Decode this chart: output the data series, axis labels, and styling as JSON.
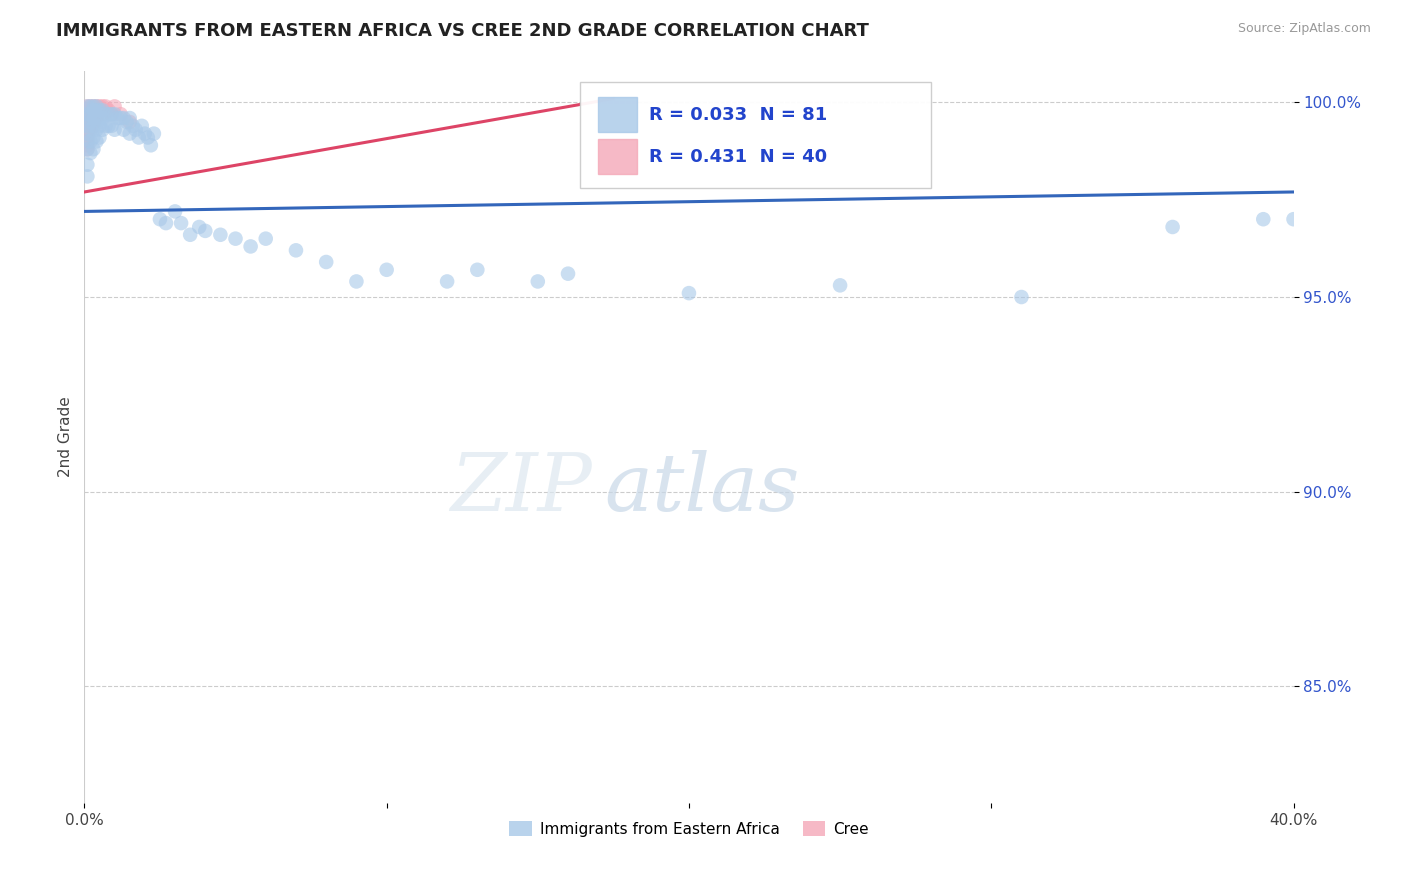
{
  "title": "IMMIGRANTS FROM EASTERN AFRICA VS CREE 2ND GRADE CORRELATION CHART",
  "source": "Source: ZipAtlas.com",
  "ylabel": "2nd Grade",
  "xlim": [
    0.0,
    0.4
  ],
  "ylim": [
    0.82,
    1.008
  ],
  "ytick_pos": [
    0.85,
    0.9,
    0.95,
    1.0
  ],
  "ytick_labels": [
    "85.0%",
    "90.0%",
    "95.0%",
    "100.0%"
  ],
  "xtick_pos": [
    0.0,
    0.1,
    0.2,
    0.3,
    0.4
  ],
  "xtick_labels": [
    "0.0%",
    "",
    "",
    "",
    "40.0%"
  ],
  "blue_R": 0.033,
  "blue_N": 81,
  "pink_R": 0.431,
  "pink_N": 40,
  "blue_color": "#a8c8e8",
  "pink_color": "#f4a8b8",
  "blue_line_color": "#3366bb",
  "pink_line_color": "#dd4466",
  "legend_label_blue": "Immigrants from Eastern Africa",
  "legend_label_pink": "Cree",
  "blue_line_x": [
    0.0,
    0.4
  ],
  "blue_line_y": [
    0.972,
    0.977
  ],
  "pink_line_x": [
    0.0,
    0.175
  ],
  "pink_line_y": [
    0.977,
    1.001
  ],
  "blue_x": [
    0.001,
    0.001,
    0.001,
    0.001,
    0.001,
    0.001,
    0.001,
    0.001,
    0.001,
    0.002,
    0.002,
    0.002,
    0.002,
    0.002,
    0.002,
    0.003,
    0.003,
    0.003,
    0.003,
    0.003,
    0.003,
    0.004,
    0.004,
    0.004,
    0.004,
    0.004,
    0.005,
    0.005,
    0.005,
    0.005,
    0.006,
    0.006,
    0.006,
    0.007,
    0.007,
    0.008,
    0.008,
    0.009,
    0.009,
    0.01,
    0.01,
    0.011,
    0.012,
    0.013,
    0.013,
    0.014,
    0.015,
    0.015,
    0.016,
    0.017,
    0.018,
    0.019,
    0.02,
    0.021,
    0.022,
    0.023,
    0.025,
    0.027,
    0.03,
    0.032,
    0.035,
    0.038,
    0.04,
    0.045,
    0.05,
    0.055,
    0.06,
    0.07,
    0.08,
    0.09,
    0.1,
    0.12,
    0.13,
    0.15,
    0.16,
    0.2,
    0.25,
    0.31,
    0.36,
    0.39,
    0.4
  ],
  "blue_y": [
    0.999,
    0.997,
    0.996,
    0.994,
    0.992,
    0.99,
    0.988,
    0.984,
    0.981,
    0.999,
    0.997,
    0.995,
    0.993,
    0.99,
    0.987,
    0.999,
    0.998,
    0.996,
    0.994,
    0.991,
    0.988,
    0.999,
    0.998,
    0.996,
    0.993,
    0.99,
    0.998,
    0.996,
    0.994,
    0.991,
    0.998,
    0.996,
    0.993,
    0.997,
    0.994,
    0.997,
    0.994,
    0.997,
    0.994,
    0.997,
    0.993,
    0.996,
    0.996,
    0.996,
    0.993,
    0.995,
    0.996,
    0.992,
    0.994,
    0.993,
    0.991,
    0.994,
    0.992,
    0.991,
    0.989,
    0.992,
    0.97,
    0.969,
    0.972,
    0.969,
    0.966,
    0.968,
    0.967,
    0.966,
    0.965,
    0.963,
    0.965,
    0.962,
    0.959,
    0.954,
    0.957,
    0.954,
    0.957,
    0.954,
    0.956,
    0.951,
    0.953,
    0.95,
    0.968,
    0.97,
    0.97
  ],
  "pink_x": [
    0.001,
    0.001,
    0.001,
    0.001,
    0.001,
    0.001,
    0.001,
    0.001,
    0.001,
    0.001,
    0.001,
    0.001,
    0.001,
    0.002,
    0.002,
    0.002,
    0.002,
    0.002,
    0.002,
    0.002,
    0.003,
    0.003,
    0.003,
    0.003,
    0.003,
    0.003,
    0.004,
    0.004,
    0.004,
    0.004,
    0.005,
    0.005,
    0.006,
    0.006,
    0.007,
    0.008,
    0.009,
    0.01,
    0.012,
    0.015
  ],
  "pink_y": [
    0.999,
    0.998,
    0.997,
    0.997,
    0.996,
    0.995,
    0.994,
    0.993,
    0.992,
    0.991,
    0.99,
    0.989,
    0.988,
    0.999,
    0.998,
    0.997,
    0.996,
    0.995,
    0.994,
    0.993,
    0.999,
    0.998,
    0.997,
    0.996,
    0.995,
    0.994,
    0.999,
    0.998,
    0.997,
    0.996,
    0.999,
    0.998,
    0.999,
    0.997,
    0.999,
    0.998,
    0.997,
    0.999,
    0.997,
    0.995
  ]
}
